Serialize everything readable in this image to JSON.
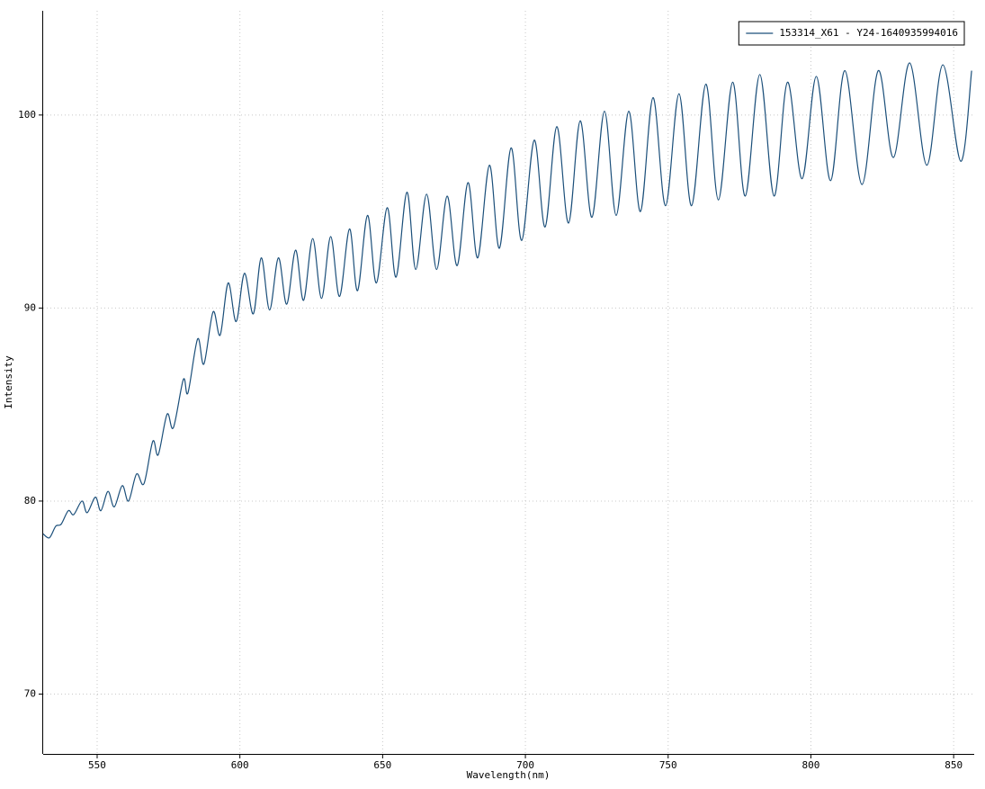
{
  "chart_data": {
    "type": "line",
    "x_label": "Wavelength(nm)",
    "y_label": "Intensity",
    "xlim": [
      531.1,
      857.2
    ],
    "ylim": [
      66.9,
      105.4
    ],
    "xticks": [
      550,
      600,
      650,
      700,
      750,
      800,
      850
    ],
    "yticks": [
      70,
      80,
      90,
      100
    ],
    "grid": true,
    "legend": "upper right",
    "series": [
      {
        "name": "153314_X61 - Y24-1640935994016",
        "color": "#1b4f7a",
        "x": [
          531.1,
          533.3,
          535.5,
          537.4,
          539.9,
          541.8,
          544.7,
          546.5,
          549.4,
          551.3,
          553.8,
          556.0,
          558.8,
          561.0,
          563.8,
          566.4,
          569.5,
          571.4,
          574.5,
          576.7,
          580.2,
          581.8,
          585.2,
          587.4,
          590.6,
          593.1,
          595.9,
          598.7,
          601.6,
          604.7,
          607.5,
          610.4,
          613.5,
          616.4,
          619.5,
          622.3,
          625.5,
          628.6,
          631.8,
          634.9,
          638.4,
          641.2,
          644.7,
          647.8,
          651.6,
          654.7,
          658.5,
          661.6,
          665.4,
          668.9,
          672.6,
          676.1,
          679.9,
          683.3,
          687.4,
          690.9,
          695.0,
          698.7,
          703.1,
          706.9,
          711.0,
          715.1,
          719.2,
          723.3,
          727.7,
          731.8,
          736.2,
          740.3,
          744.7,
          749.1,
          753.8,
          758.2,
          763.2,
          767.6,
          772.6,
          777.0,
          782.1,
          787.1,
          791.8,
          796.9,
          801.9,
          806.9,
          811.9,
          817.9,
          823.6,
          828.9,
          834.6,
          840.6,
          846.2,
          852.5,
          856.3
        ],
        "values": [
          78.3,
          78.1,
          78.7,
          78.8,
          79.5,
          79.3,
          80.0,
          79.4,
          80.2,
          79.5,
          80.5,
          79.7,
          80.8,
          80.0,
          81.4,
          80.9,
          83.1,
          82.4,
          84.5,
          83.8,
          86.3,
          85.6,
          88.4,
          87.1,
          89.8,
          88.6,
          91.3,
          89.3,
          91.8,
          89.7,
          92.6,
          89.9,
          92.6,
          90.2,
          93.0,
          90.4,
          93.6,
          90.5,
          93.7,
          90.6,
          94.1,
          90.9,
          94.8,
          91.3,
          95.2,
          91.6,
          96.0,
          92.0,
          95.9,
          92.0,
          95.8,
          92.2,
          96.5,
          92.6,
          97.4,
          93.1,
          98.3,
          93.5,
          98.7,
          94.2,
          99.4,
          94.4,
          99.7,
          94.7,
          100.2,
          94.8,
          100.2,
          95.0,
          100.9,
          95.3,
          101.1,
          95.3,
          101.6,
          95.6,
          101.7,
          95.8,
          102.1,
          95.8,
          101.7,
          96.7,
          102.0,
          96.6,
          102.3,
          96.4,
          102.3,
          97.8,
          102.7,
          97.4,
          102.6,
          97.6,
          102.3
        ]
      }
    ]
  }
}
